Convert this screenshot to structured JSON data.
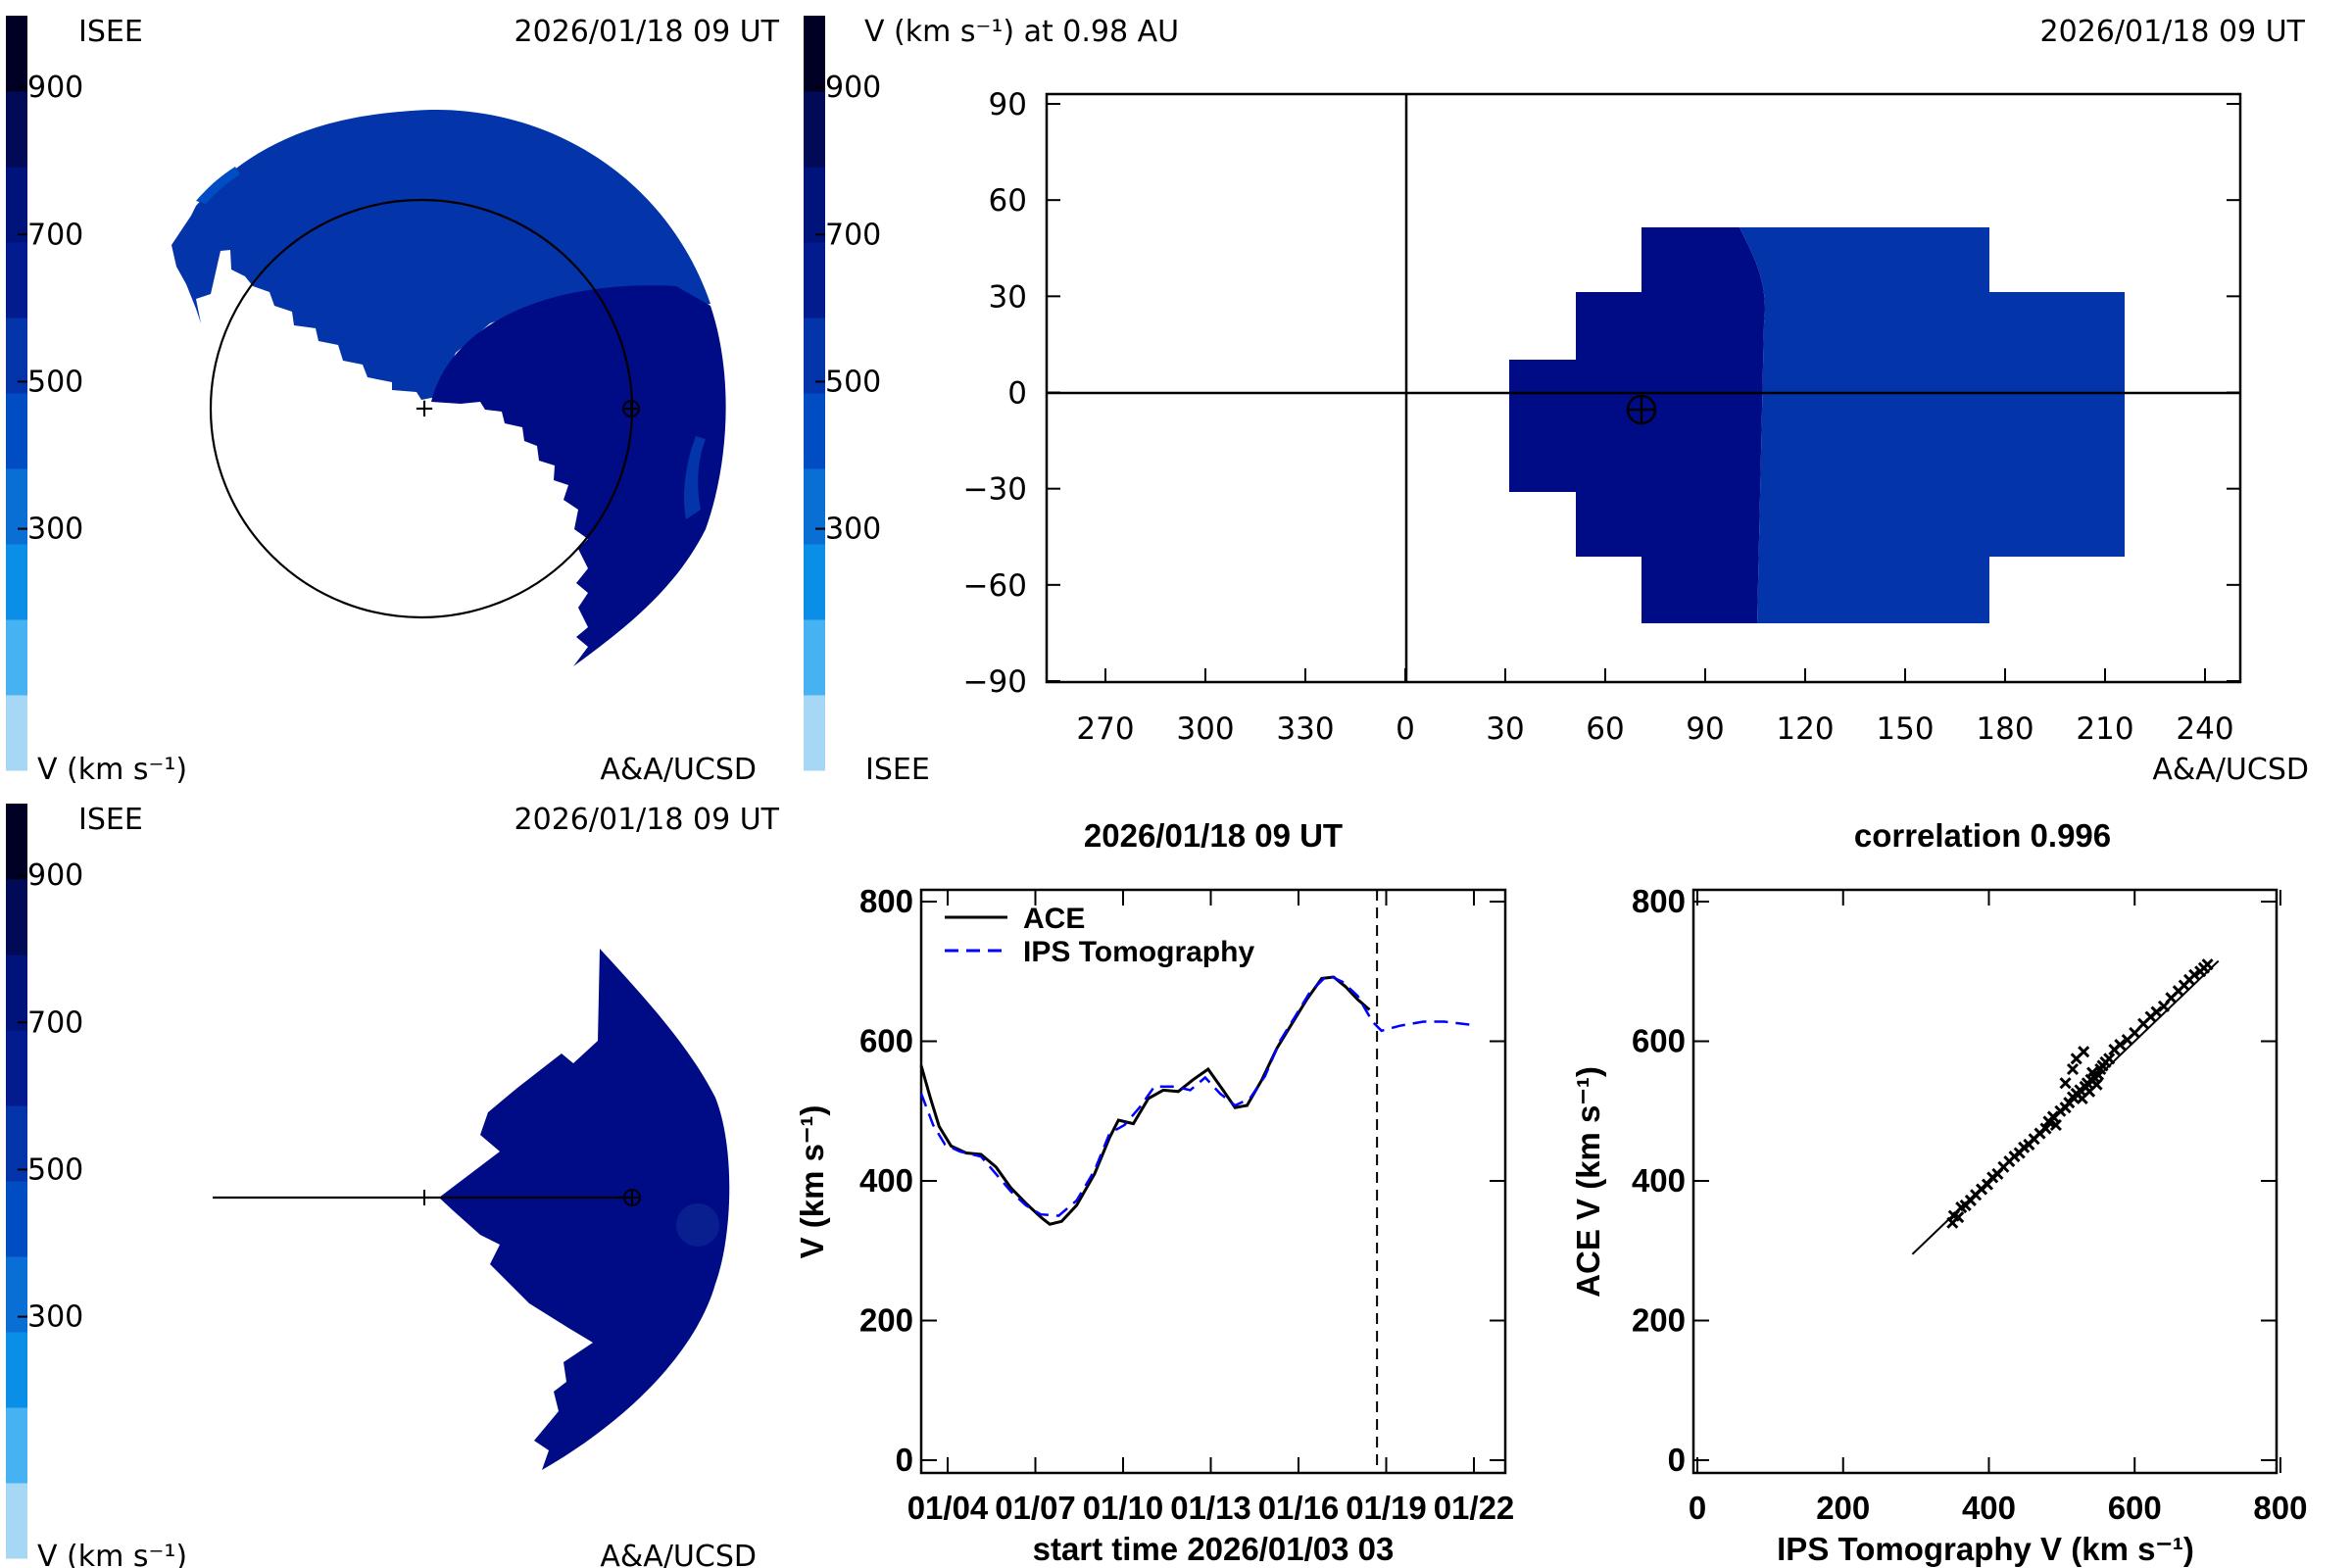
{
  "colorbar": {
    "ticks": [
      "900",
      "700",
      "500",
      "300"
    ],
    "bands": [
      "#a6d8f6",
      "#47b2f2",
      "#0b8fe6",
      "#0a6fd4",
      "#004cc2",
      "#0434a9",
      "#021c8f",
      "#00137a",
      "#000a55",
      "#000024"
    ],
    "unit_label": "V (km s⁻¹)"
  },
  "panels": {
    "top_left": {
      "source": "ISEE",
      "timestamp": "2026/01/18 09 UT",
      "unit_label": "V (km s⁻¹)",
      "credit": "A&A/UCSD"
    },
    "top_right": {
      "title": "V (km s⁻¹) at 0.98 AU",
      "timestamp": "2026/01/18 09 UT",
      "source": "ISEE",
      "credit": "A&A/UCSD",
      "fast_color": "#000b86",
      "slow_color": "#0434a9"
    },
    "bottom_left": {
      "source": "ISEE",
      "timestamp": "2026/01/18 09 UT",
      "unit_label": "V (km s⁻¹)",
      "credit": "A&A/UCSD",
      "fill_color": "#000b86"
    }
  },
  "chart_data": [
    {
      "type": "heatmap",
      "title": "V (km s⁻¹) at 0.98 AU",
      "xticks": [
        "270",
        "300",
        "330",
        "0",
        "30",
        "60",
        "90",
        "120",
        "150",
        "180",
        "210",
        "240"
      ],
      "yticks": [
        "90",
        "60",
        "30",
        "0",
        "−30",
        "−60",
        "−90"
      ],
      "ylim": [
        -90,
        90
      ]
    },
    {
      "type": "line",
      "title": "2026/01/18 09 UT",
      "xlabel": "start time 2026/01/03 03",
      "ylabel": "V (km s⁻¹)",
      "ylim": [
        0,
        800
      ],
      "yticks": [
        "800",
        "600",
        "400",
        "200",
        "0"
      ],
      "xticks": [
        "01/04",
        "01/07",
        "01/10",
        "01/13",
        "01/16",
        "01/19",
        "01/22"
      ],
      "current_time_day": 15.25,
      "series": [
        {
          "name": "ACE",
          "color": "#000000",
          "dash": "solid",
          "points": [
            [
              0,
              565
            ],
            [
              0.3,
              520
            ],
            [
              0.6,
              478
            ],
            [
              1.0,
              450
            ],
            [
              1.5,
              440
            ],
            [
              2.0,
              438
            ],
            [
              2.5,
              420
            ],
            [
              3.0,
              390
            ],
            [
              3.5,
              368
            ],
            [
              4.0,
              348
            ],
            [
              4.3,
              338
            ],
            [
              4.7,
              342
            ],
            [
              5.2,
              365
            ],
            [
              5.8,
              410
            ],
            [
              6.3,
              462
            ],
            [
              6.6,
              487
            ],
            [
              7.1,
              482
            ],
            [
              7.6,
              518
            ],
            [
              8.1,
              530
            ],
            [
              8.6,
              528
            ],
            [
              9.1,
              545
            ],
            [
              9.6,
              560
            ],
            [
              10.1,
              530
            ],
            [
              10.5,
              505
            ],
            [
              10.9,
              508
            ],
            [
              11.4,
              545
            ],
            [
              11.9,
              590
            ],
            [
              12.4,
              625
            ],
            [
              12.9,
              660
            ],
            [
              13.4,
              690
            ],
            [
              13.8,
              692
            ],
            [
              14.2,
              678
            ],
            [
              14.6,
              660
            ],
            [
              15.0,
              645
            ]
          ]
        },
        {
          "name": "IPS Tomography",
          "color": "#0000ff",
          "dash": "dashed",
          "points": [
            [
              0,
              525
            ],
            [
              0.4,
              480
            ],
            [
              0.8,
              452
            ],
            [
              1.3,
              442
            ],
            [
              2.0,
              435
            ],
            [
              2.5,
              410
            ],
            [
              3.0,
              385
            ],
            [
              3.5,
              365
            ],
            [
              4.0,
              352
            ],
            [
              4.6,
              350
            ],
            [
              5.2,
              372
            ],
            [
              5.8,
              415
            ],
            [
              6.3,
              468
            ],
            [
              6.8,
              480
            ],
            [
              7.3,
              505
            ],
            [
              7.8,
              535
            ],
            [
              8.5,
              535
            ],
            [
              9.0,
              530
            ],
            [
              9.5,
              548
            ],
            [
              10.0,
              525
            ],
            [
              10.5,
              508
            ],
            [
              11.0,
              518
            ],
            [
              11.5,
              550
            ],
            [
              12.0,
              600
            ],
            [
              12.5,
              635
            ],
            [
              13.0,
              670
            ],
            [
              13.6,
              695
            ],
            [
              14.1,
              685
            ],
            [
              14.6,
              665
            ],
            [
              15.1,
              628
            ],
            [
              15.4,
              615
            ],
            [
              16.0,
              622
            ],
            [
              16.8,
              628
            ],
            [
              17.5,
              628
            ],
            [
              18.5,
              623
            ]
          ]
        }
      ]
    },
    {
      "type": "scatter",
      "title": "correlation 0.996",
      "xlabel": "IPS Tomography V (km s⁻¹)",
      "ylabel": "ACE V (km s⁻¹)",
      "xlim": [
        0,
        800
      ],
      "ylim": [
        0,
        800
      ],
      "xticks": [
        "0",
        "200",
        "400",
        "600",
        "800"
      ],
      "yticks": [
        "800",
        "600",
        "400",
        "200",
        "0"
      ],
      "fit_line": [
        [
          295,
          295
        ],
        [
          715,
          715
        ]
      ],
      "points": [
        [
          350,
          340
        ],
        [
          352,
          350
        ],
        [
          358,
          348
        ],
        [
          362,
          362
        ],
        [
          368,
          365
        ],
        [
          375,
          372
        ],
        [
          382,
          380
        ],
        [
          390,
          388
        ],
        [
          398,
          395
        ],
        [
          405,
          405
        ],
        [
          412,
          410
        ],
        [
          420,
          420
        ],
        [
          428,
          428
        ],
        [
          435,
          435
        ],
        [
          442,
          440
        ],
        [
          448,
          448
        ],
        [
          455,
          452
        ],
        [
          462,
          460
        ],
        [
          470,
          468
        ],
        [
          478,
          475
        ],
        [
          482,
          485
        ],
        [
          488,
          492
        ],
        [
          492,
          480
        ],
        [
          498,
          500
        ],
        [
          505,
          505
        ],
        [
          510,
          512
        ],
        [
          515,
          520
        ],
        [
          520,
          525
        ],
        [
          525,
          530
        ],
        [
          528,
          518
        ],
        [
          532,
          535
        ],
        [
          535,
          540
        ],
        [
          538,
          528
        ],
        [
          540,
          545
        ],
        [
          542,
          555
        ],
        [
          545,
          548
        ],
        [
          548,
          538
        ],
        [
          550,
          552
        ],
        [
          553,
          560
        ],
        [
          556,
          565
        ],
        [
          560,
          570
        ],
        [
          565,
          575
        ],
        [
          572,
          588
        ],
        [
          580,
          595
        ],
        [
          590,
          602
        ],
        [
          600,
          612
        ],
        [
          612,
          625
        ],
        [
          622,
          635
        ],
        [
          630,
          642
        ],
        [
          640,
          650
        ],
        [
          650,
          662
        ],
        [
          660,
          672
        ],
        [
          668,
          680
        ],
        [
          675,
          688
        ],
        [
          682,
          695
        ],
        [
          690,
          700
        ],
        [
          695,
          705
        ],
        [
          700,
          710
        ],
        [
          520,
          575
        ],
        [
          530,
          585
        ],
        [
          505,
          540
        ],
        [
          515,
          560
        ]
      ]
    }
  ]
}
